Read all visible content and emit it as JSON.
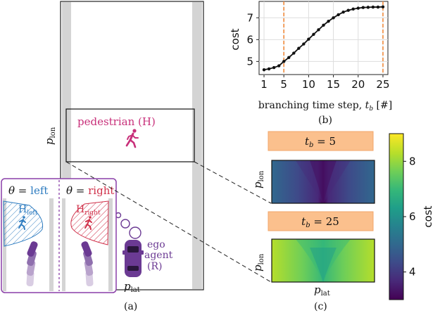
{
  "panel_a": {
    "caption": "(a)",
    "axis_lon": "p",
    "axis_lon_sub": "lon",
    "axis_lat": "p",
    "axis_lat_sub": "lat",
    "pedestrian_label": "pedestrian (H)",
    "ego_label_line1": "ego",
    "ego_label_line2": "agent",
    "ego_label_line3": "(R)",
    "inset": {
      "left_title_theta": "θ = ",
      "left_title_value": "left",
      "right_title_theta": "θ = ",
      "right_title_value": "right",
      "h_left": "H",
      "h_left_sub": "left",
      "h_right": "H",
      "h_right_sub": "right"
    },
    "colors": {
      "pedestrian": "#c8307a",
      "left": "#2e7cc0",
      "right": "#d0314a",
      "ego": "#6b3a93"
    }
  },
  "panel_b": {
    "caption": "(b)",
    "chart_data": {
      "type": "line",
      "xlabel": "branching time step, t_b [#]",
      "xlabel_main": "branching time step, ",
      "xlabel_var": "t",
      "xlabel_sub": "b",
      "xlabel_unit": " [#]",
      "ylabel": "cost",
      "x_ticks": [
        1,
        5,
        10,
        15,
        20,
        25
      ],
      "y_ticks": [
        5,
        6,
        7
      ],
      "xlim": [
        0,
        26
      ],
      "ylim": [
        4.4,
        7.75
      ],
      "grid": true,
      "highlight_x": [
        5,
        25
      ],
      "series": [
        {
          "x": [
            1,
            2,
            3,
            4,
            5,
            6,
            7,
            8,
            9,
            10,
            11,
            12,
            13,
            14,
            15,
            16,
            17,
            18,
            19,
            20,
            21,
            22,
            23,
            24,
            25
          ],
          "y": [
            4.62,
            4.66,
            4.72,
            4.8,
            5.0,
            5.18,
            5.38,
            5.6,
            5.8,
            6.02,
            6.24,
            6.45,
            6.66,
            6.84,
            7.0,
            7.14,
            7.26,
            7.34,
            7.4,
            7.44,
            7.47,
            7.48,
            7.49,
            7.49,
            7.5
          ]
        }
      ]
    }
  },
  "panel_c": {
    "caption": "(c)",
    "label_top_var": "t",
    "label_top_sub": "b",
    "label_top_eq": " = 5",
    "label_bot_var": "t",
    "label_bot_sub": "b",
    "label_bot_eq": " = 25",
    "axis_lon": "p",
    "axis_lon_sub": "lon",
    "axis_lat": "p",
    "axis_lat_sub": "lat",
    "colorbar": {
      "label": "cost",
      "ticks": [
        4,
        6,
        8
      ],
      "range": [
        3.0,
        9.0
      ],
      "stops": [
        "#440154",
        "#482878",
        "#3e4a89",
        "#31688e",
        "#26828e",
        "#1f9e89",
        "#35b779",
        "#6ece58",
        "#b5de2b",
        "#fde725"
      ]
    }
  }
}
